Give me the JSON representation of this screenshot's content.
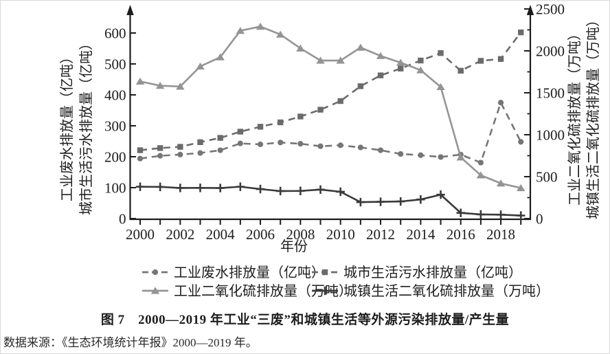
{
  "figure": {
    "caption": "图 7　2000—2019 年工业“三废”和城镇生活等外源污染排放量/产生量",
    "source": "数据来源：《生态环境统计年报》2000—2019 年。"
  },
  "chart_data": {
    "type": "line",
    "title": "",
    "x": {
      "label": "年份",
      "years": [
        2000,
        2001,
        2002,
        2003,
        2004,
        2005,
        2006,
        2007,
        2008,
        2009,
        2010,
        2011,
        2012,
        2013,
        2014,
        2015,
        2016,
        2017,
        2018,
        2019
      ],
      "tick_label_years": [
        2000,
        2002,
        2004,
        2006,
        2008,
        2010,
        2012,
        2014,
        2016,
        2018
      ]
    },
    "left_axis": {
      "labels": [
        "工业废水排放量（亿吨）",
        "城市生活污水排放量（亿吨）"
      ],
      "unit": "亿吨",
      "range": [
        0,
        600
      ],
      "ticks": [
        0,
        100,
        200,
        300,
        400,
        500,
        600
      ]
    },
    "right_axis": {
      "labels": [
        "工业二氧化硫排放量（万吨）",
        "城镇生活二氧化硫排放量（万吨）"
      ],
      "unit": "万吨",
      "range": [
        0,
        2500
      ],
      "ticks": [
        0,
        500,
        1000,
        1500,
        2000,
        2500
      ],
      "minor_ticks": [
        250,
        750,
        1250,
        1750,
        2250
      ]
    },
    "grid": false,
    "legend_position": "bottom",
    "colors": {
      "industrial-wastewater": "#767676",
      "urban-domestic-sewage": "#6b6b6b",
      "industrial-so2": "#949494",
      "urban-domestic-so2": "#3a3a3a",
      "axis": "#1c1c1c"
    },
    "series": [
      {
        "name": "industrial-wastewater",
        "label": "工业废水排放量（亿吨）",
        "axis": "left",
        "line": "dashed",
        "marker": "circle",
        "color": "#767676",
        "values": [
          194,
          203,
          207,
          212,
          221,
          243,
          240,
          246,
          242,
          234,
          237,
          230,
          221,
          209,
          205,
          199,
          207,
          181,
          375,
          248
        ]
      },
      {
        "name": "urban-domestic-sewage",
        "label": "城市生活污水排放量（亿吨）",
        "axis": "left",
        "line": "dashed",
        "marker": "square",
        "color": "#6b6b6b",
        "values": [
          221,
          228,
          232,
          247,
          261,
          281,
          297,
          311,
          330,
          352,
          380,
          428,
          463,
          485,
          511,
          535,
          478,
          510,
          516,
          602
        ]
      },
      {
        "name": "industrial-so2",
        "label": "工业二氧化硫排放量（万吨）",
        "axis": "right",
        "line": "solid",
        "marker": "triangle",
        "color": "#949494",
        "values": [
          1635,
          1585,
          1575,
          1815,
          1925,
          2240,
          2290,
          2195,
          2030,
          1885,
          1885,
          2040,
          1940,
          1860,
          1770,
          1570,
          730,
          517,
          420,
          365
        ]
      },
      {
        "name": "urban-domestic-so2",
        "label": "城镇生活二氧化硫排放量（万吨）",
        "axis": "right",
        "line": "solid",
        "marker": "plus",
        "color": "#3a3a3a",
        "values": [
          380,
          378,
          365,
          366,
          364,
          380,
          352,
          328,
          330,
          346,
          320,
          196,
          200,
          204,
          228,
          285,
          68,
          50,
          47,
          36
        ]
      }
    ]
  }
}
